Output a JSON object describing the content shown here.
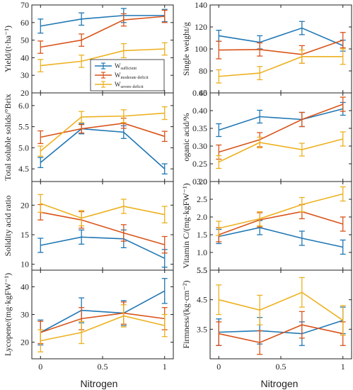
{
  "colors": {
    "sufficient": "#1f77b4",
    "moderate": "#d9541a",
    "severe": "#edb120",
    "axis": "#222222"
  },
  "legend": {
    "entries": [
      {
        "key": "sufficient",
        "base": "W",
        "sub": "sufficient"
      },
      {
        "key": "moderate",
        "base": "W",
        "sub": "moderate deficit"
      },
      {
        "key": "severe",
        "base": "W",
        "sub": "severe deficit"
      }
    ]
  },
  "xlabels": {
    "left": "Nitrogen",
    "right": "Nitrogen"
  },
  "chart_data": [
    {
      "id": "yield",
      "type": "line",
      "ylabel": "Yield/(t·ha⁻¹)",
      "ylim": [
        20,
        70
      ],
      "yticks": [
        "20",
        "30",
        "40",
        "50",
        "60",
        "70"
      ],
      "x": [
        0,
        0.33,
        0.67,
        1
      ],
      "xticks": [
        "0",
        "0.5",
        "1"
      ],
      "series": [
        {
          "key": "sufficient",
          "values": [
            58,
            62,
            64,
            64
          ],
          "err": [
            4,
            3.5,
            4,
            3.5
          ]
        },
        {
          "key": "moderate",
          "values": [
            46,
            50,
            61.5,
            63.5
          ],
          "err": [
            3.5,
            3.5,
            3.5,
            3.5
          ]
        },
        {
          "key": "severe",
          "values": [
            35.5,
            38,
            44,
            45
          ],
          "err": [
            3.5,
            3.5,
            4,
            3.5
          ]
        }
      ]
    },
    {
      "id": "singleweight",
      "type": "line",
      "ylabel": "Single weight/g",
      "ylim": [
        60,
        140
      ],
      "yticks": [
        "60",
        "80",
        "100",
        "120",
        "140"
      ],
      "x": [
        0,
        0.33,
        0.67,
        1
      ],
      "xticks": [
        "0",
        "0.5",
        "1"
      ],
      "series": [
        {
          "key": "sufficient",
          "values": [
            112,
            106,
            119,
            103
          ],
          "err": [
            5,
            6,
            6,
            5
          ]
        },
        {
          "key": "moderate",
          "values": [
            99,
            99.5,
            95,
            108
          ],
          "err": [
            8,
            6,
            8,
            7
          ]
        },
        {
          "key": "severe",
          "values": [
            75,
            78,
            93,
            93
          ],
          "err": [
            6,
            6,
            6,
            7
          ]
        }
      ]
    },
    {
      "id": "tss",
      "type": "line",
      "ylabel": "Total soluble solids/°Brix",
      "ylim": [
        4.2,
        6.3
      ],
      "yticks": [
        "4.5",
        "5.0",
        "5.5",
        "6.0",
        "6.5"
      ],
      "x": [
        0,
        0.33,
        0.67,
        1
      ],
      "xticks": [
        "0",
        "0.5",
        "1"
      ],
      "series": [
        {
          "key": "sufficient",
          "values": [
            4.65,
            5.45,
            5.37,
            4.5
          ],
          "err": [
            0.12,
            0.12,
            0.15,
            0.12
          ]
        },
        {
          "key": "moderate",
          "values": [
            5.25,
            5.45,
            5.58,
            5.27
          ],
          "err": [
            0.15,
            0.1,
            0.12,
            0.12
          ]
        },
        {
          "key": "severe",
          "values": [
            4.92,
            5.73,
            5.75,
            5.82
          ],
          "err": [
            0.12,
            0.13,
            0.15,
            0.15
          ]
        }
      ]
    },
    {
      "id": "organicacid",
      "type": "line",
      "ylabel": "oganic acid/%",
      "ylim": [
        0.2,
        0.45
      ],
      "yticks": [
        "0.20",
        "0.25",
        "0.30",
        "0.35",
        "0.40",
        "0.45"
      ],
      "x": [
        0,
        0.33,
        0.67,
        1
      ],
      "xticks": [
        "0",
        "0.5",
        "1"
      ],
      "series": [
        {
          "key": "sufficient",
          "values": [
            0.345,
            0.383,
            0.375,
            0.405
          ],
          "err": [
            0.018,
            0.018,
            0.02,
            0.018
          ]
        },
        {
          "key": "moderate",
          "values": [
            0.283,
            0.318,
            0.375,
            0.418
          ],
          "err": [
            0.02,
            0.02,
            0.02,
            0.02
          ]
        },
        {
          "key": "severe",
          "values": [
            0.255,
            0.31,
            0.29,
            0.32
          ],
          "err": [
            0.018,
            0.015,
            0.018,
            0.02
          ]
        }
      ]
    },
    {
      "id": "solidity",
      "type": "line",
      "ylabel": "Solidity acid ratio",
      "ylim": [
        9,
        24
      ],
      "yticks": [
        "10",
        "15",
        "20"
      ],
      "x": [
        0,
        0.33,
        0.67,
        1
      ],
      "xticks": [
        "0",
        "0.5",
        "1"
      ],
      "series": [
        {
          "key": "sufficient",
          "values": [
            13.2,
            14.6,
            14.3,
            11
          ],
          "err": [
            1.2,
            1.2,
            1.5,
            1.5
          ]
        },
        {
          "key": "moderate",
          "values": [
            18.8,
            17.5,
            15.3,
            13.3
          ],
          "err": [
            1.3,
            1.4,
            1.4,
            1.4
          ]
        },
        {
          "key": "severe",
          "values": [
            20.3,
            17.8,
            19.8,
            18.4
          ],
          "err": [
            1.5,
            1.3,
            1.2,
            1.4
          ]
        }
      ]
    },
    {
      "id": "vitaminc",
      "type": "line",
      "ylabel": "Vitamin C/(mg·kgFW⁻¹)",
      "ylim": [
        0.5,
        3.0
      ],
      "yticks": [
        "5.5",
        "1.0",
        "1.5",
        "2.0",
        "2.5",
        "3.0"
      ],
      "x": [
        0,
        0.33,
        0.67,
        1
      ],
      "xticks": [
        "0",
        "0.5",
        "1"
      ],
      "series": [
        {
          "key": "sufficient",
          "values": [
            1.45,
            1.7,
            1.4,
            1.15
          ],
          "err": [
            0.2,
            0.2,
            0.2,
            0.2
          ]
        },
        {
          "key": "moderate",
          "values": [
            1.5,
            1.92,
            2.15,
            1.8
          ],
          "err": [
            0.2,
            0.2,
            0.2,
            0.2
          ]
        },
        {
          "key": "severe",
          "values": [
            1.68,
            1.95,
            2.35,
            2.65
          ],
          "err": [
            0.2,
            0.2,
            0.2,
            0.2
          ]
        }
      ]
    },
    {
      "id": "lycopene",
      "type": "line",
      "ylabel": "Lycopene/(mg·kgFW⁻¹)",
      "ylim": [
        14,
        46
      ],
      "yticks": [
        "20",
        "30",
        "40"
      ],
      "x": [
        0,
        0.33,
        0.67,
        1
      ],
      "xticks": [
        "0",
        "0.5",
        "1"
      ],
      "series": [
        {
          "key": "sufficient",
          "values": [
            23.5,
            31.5,
            30.5,
            38.5
          ],
          "err": [
            4.5,
            4.5,
            4.5,
            4.5
          ]
        },
        {
          "key": "moderate",
          "values": [
            23.5,
            28.5,
            30.5,
            28.5
          ],
          "err": [
            4,
            4,
            4,
            4
          ]
        },
        {
          "key": "severe",
          "values": [
            20.5,
            23.5,
            29.5,
            26
          ],
          "err": [
            4,
            4,
            4,
            4
          ]
        }
      ]
    },
    {
      "id": "firmness",
      "type": "line",
      "ylabel": "Firmness/(kg·cm⁻²)",
      "ylim": [
        2.5,
        5.5
      ],
      "yticks": [
        "3.5",
        "4.5",
        "5.5"
      ],
      "ytickvals": [
        3.5,
        4.5,
        5.5
      ],
      "x": [
        0,
        0.33,
        0.67,
        1
      ],
      "xticks": [
        "0",
        "0.5",
        "1"
      ],
      "series": [
        {
          "key": "sufficient",
          "values": [
            3.4,
            3.45,
            3.35,
            3.8
          ],
          "err": [
            0.45,
            0.45,
            0.4,
            0.45
          ]
        },
        {
          "key": "moderate",
          "values": [
            3.35,
            3.05,
            3.65,
            3.35
          ],
          "err": [
            0.4,
            0.4,
            0.45,
            0.4
          ]
        },
        {
          "key": "severe",
          "values": [
            4.5,
            4.15,
            4.75,
            3.8
          ],
          "err": [
            0.5,
            0.5,
            0.5,
            0.5
          ]
        }
      ]
    }
  ]
}
